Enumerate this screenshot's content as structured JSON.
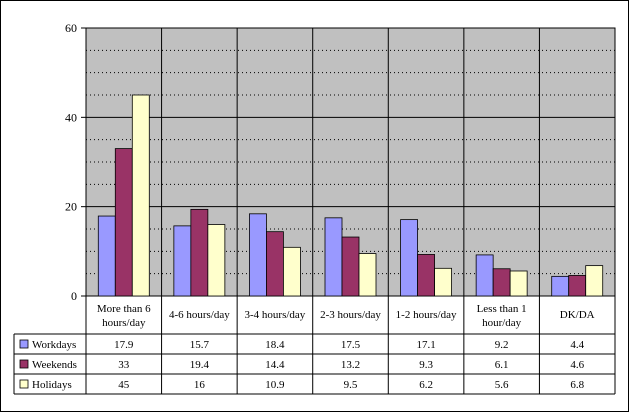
{
  "chart_data": {
    "type": "bar",
    "categories": [
      [
        "More than 6",
        "hours/day"
      ],
      [
        "4-6 hours/day"
      ],
      [
        "3-4 hours/day"
      ],
      [
        "2-3 hours/day"
      ],
      [
        "1-2 hours/day"
      ],
      [
        "Less than 1",
        "hour/day"
      ],
      [
        "DK/DA"
      ]
    ],
    "series": [
      {
        "name": "Workdays",
        "color": "#9999ff",
        "values": [
          17.9,
          15.7,
          18.4,
          17.5,
          17.1,
          9.2,
          4.4
        ]
      },
      {
        "name": "Weekends",
        "color": "#993366",
        "values": [
          33,
          19.4,
          14.4,
          13.2,
          9.3,
          6.1,
          4.6
        ]
      },
      {
        "name": "Holidays",
        "color": "#ffffcc",
        "values": [
          45,
          16,
          10.9,
          9.5,
          6.2,
          5.6,
          6.8
        ]
      }
    ],
    "ylim": [
      0,
      60
    ],
    "yticks": [
      0,
      20,
      40,
      60
    ],
    "grid": true,
    "plot_background": "#c0c0c0",
    "legend": "data-table",
    "title": "",
    "xlabel": "",
    "ylabel": ""
  }
}
